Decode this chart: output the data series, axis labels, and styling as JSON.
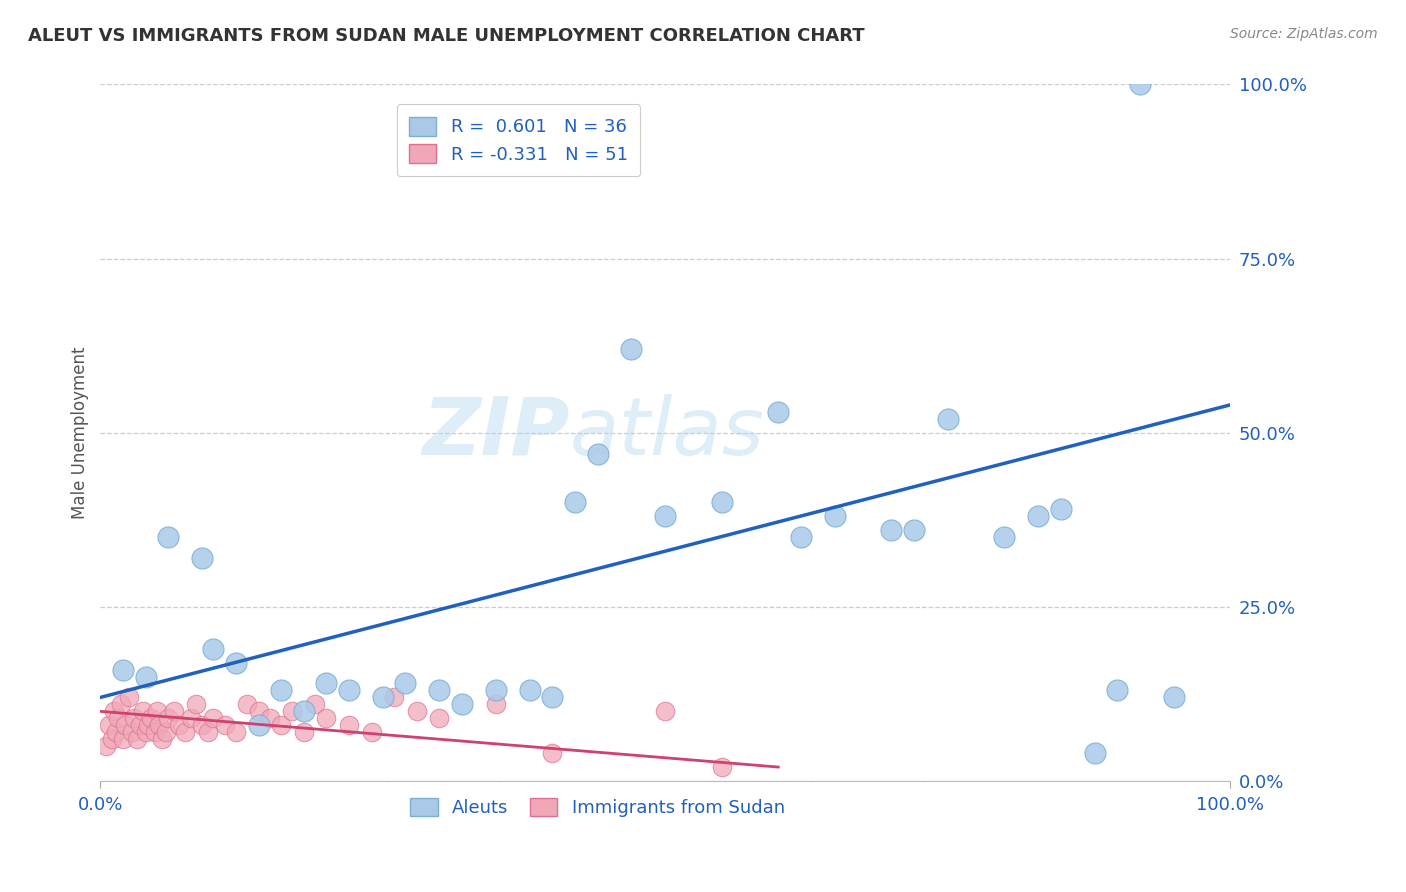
{
  "title": "ALEUT VS IMMIGRANTS FROM SUDAN MALE UNEMPLOYMENT CORRELATION CHART",
  "source": "Source: ZipAtlas.com",
  "ylabel": "Male Unemployment",
  "ytick_labels": [
    "0.0%",
    "25.0%",
    "50.0%",
    "75.0%",
    "100.0%"
  ],
  "ytick_values": [
    0,
    0.25,
    0.5,
    0.75,
    1.0
  ],
  "xlim": [
    0,
    1.0
  ],
  "ylim": [
    0,
    1.0
  ],
  "watermark_zip": "ZIP",
  "watermark_atlas": "atlas",
  "legend_r_aleut": "R =  0.601",
  "legend_n_aleut": "N = 36",
  "legend_r_sudan": "R = -0.331",
  "legend_n_sudan": "N = 51",
  "aleut_color": "#aac9e8",
  "aleut_edge_color": "#7aafd4",
  "aleut_line_color": "#2060c0",
  "sudan_color": "#f0a8b8",
  "sudan_edge_color": "#e07090",
  "sudan_line_color": "#d04070",
  "aleut_scatter_x": [
    0.02,
    0.04,
    0.06,
    0.09,
    0.1,
    0.12,
    0.14,
    0.16,
    0.18,
    0.2,
    0.22,
    0.25,
    0.27,
    0.3,
    0.32,
    0.35,
    0.38,
    0.4,
    0.42,
    0.44,
    0.47,
    0.5,
    0.55,
    0.6,
    0.62,
    0.65,
    0.7,
    0.72,
    0.75,
    0.8,
    0.85,
    0.88,
    0.9,
    0.92,
    0.95,
    0.83
  ],
  "aleut_scatter_y": [
    0.16,
    0.15,
    0.35,
    0.32,
    0.19,
    0.17,
    0.08,
    0.13,
    0.1,
    0.14,
    0.13,
    0.12,
    0.14,
    0.13,
    0.11,
    0.13,
    0.13,
    0.12,
    0.4,
    0.47,
    0.62,
    0.38,
    0.4,
    0.53,
    0.35,
    0.38,
    0.36,
    0.36,
    0.52,
    0.35,
    0.39,
    0.04,
    0.13,
    1.0,
    0.12,
    0.38
  ],
  "sudan_scatter_x": [
    0.005,
    0.008,
    0.01,
    0.012,
    0.014,
    0.016,
    0.018,
    0.02,
    0.022,
    0.025,
    0.028,
    0.03,
    0.032,
    0.035,
    0.038,
    0.04,
    0.042,
    0.045,
    0.048,
    0.05,
    0.052,
    0.055,
    0.058,
    0.06,
    0.065,
    0.07,
    0.075,
    0.08,
    0.085,
    0.09,
    0.095,
    0.1,
    0.11,
    0.12,
    0.13,
    0.14,
    0.15,
    0.16,
    0.17,
    0.18,
    0.19,
    0.2,
    0.22,
    0.24,
    0.26,
    0.28,
    0.3,
    0.35,
    0.4,
    0.5,
    0.55
  ],
  "sudan_scatter_y": [
    0.05,
    0.08,
    0.06,
    0.1,
    0.07,
    0.09,
    0.11,
    0.06,
    0.08,
    0.12,
    0.07,
    0.09,
    0.06,
    0.08,
    0.1,
    0.07,
    0.08,
    0.09,
    0.07,
    0.1,
    0.08,
    0.06,
    0.07,
    0.09,
    0.1,
    0.08,
    0.07,
    0.09,
    0.11,
    0.08,
    0.07,
    0.09,
    0.08,
    0.07,
    0.11,
    0.1,
    0.09,
    0.08,
    0.1,
    0.07,
    0.11,
    0.09,
    0.08,
    0.07,
    0.12,
    0.1,
    0.09,
    0.11,
    0.04,
    0.1,
    0.02
  ],
  "aleut_line_x": [
    0.0,
    1.0
  ],
  "aleut_line_y": [
    0.12,
    0.54
  ],
  "sudan_line_x": [
    0.0,
    0.6
  ],
  "sudan_line_y": [
    0.1,
    0.02
  ],
  "bottom_labels": [
    "Aleuts",
    "Immigrants from Sudan"
  ],
  "label_color": "#2060c0",
  "title_color": "#333333",
  "source_color": "#888888"
}
